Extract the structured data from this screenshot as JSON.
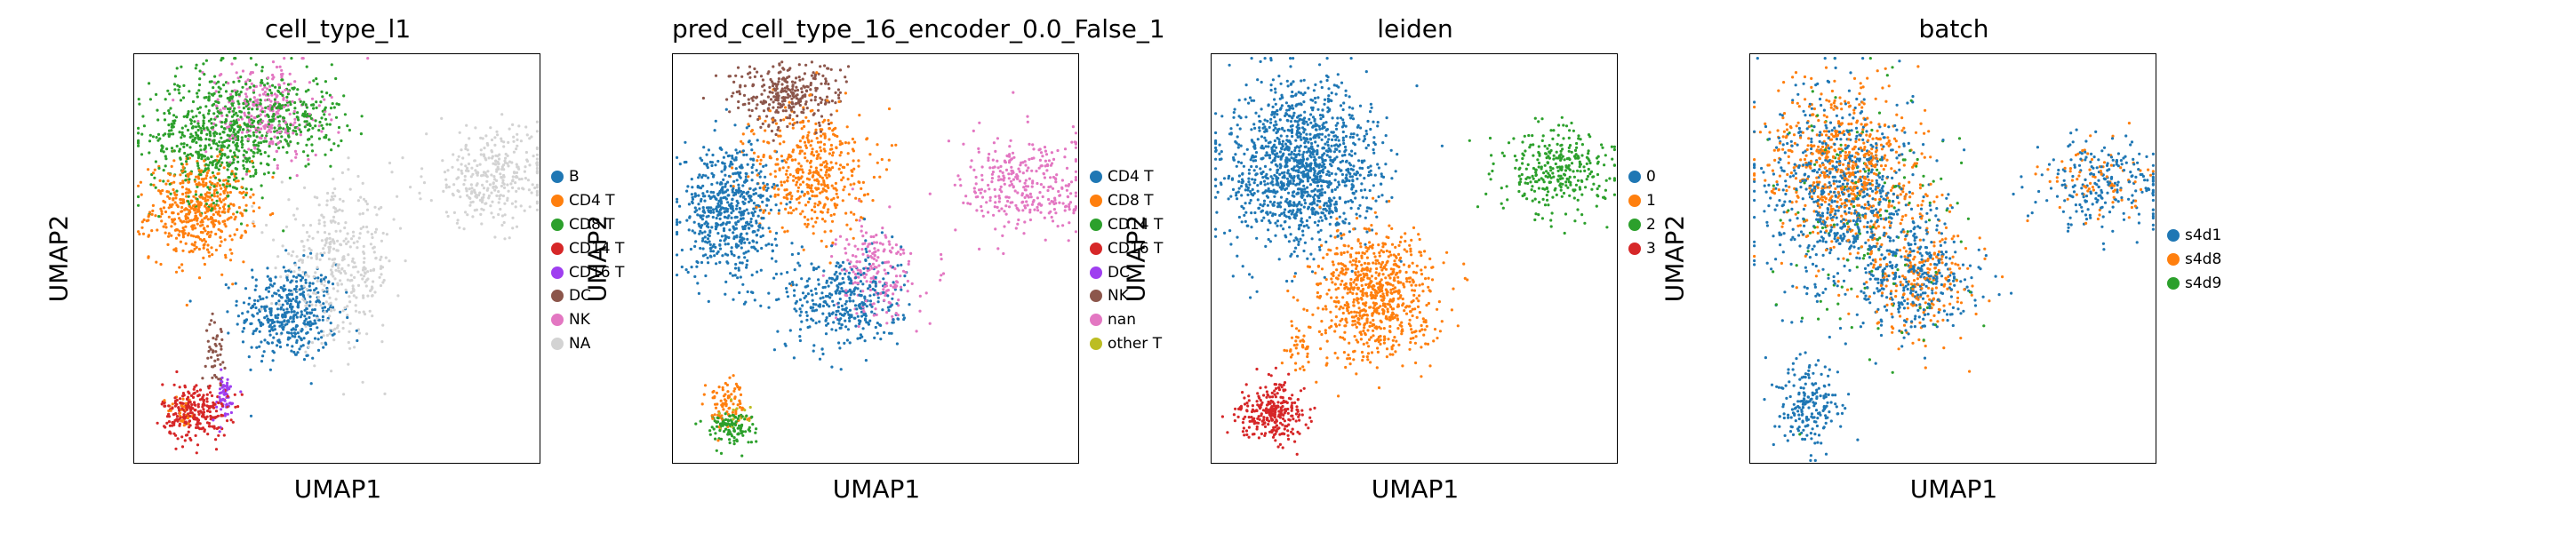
{
  "panels": [
    {
      "title": "cell_type_l1",
      "xlabel": "UMAP1",
      "ylabel": "UMAP2",
      "legend": [
        {
          "label": "B",
          "color": "#1f77b4"
        },
        {
          "label": "CD4 T",
          "color": "#ff7f0e"
        },
        {
          "label": "CD8 T",
          "color": "#2ca02c"
        },
        {
          "label": "CD14 T",
          "color": "#d62728"
        },
        {
          "label": "CD16 T",
          "color": "#9f3ff0"
        },
        {
          "label": "DC",
          "color": "#8c564b"
        },
        {
          "label": "NK",
          "color": "#e377c2"
        },
        {
          "label": "NA",
          "color": "#d3d3d3"
        }
      ]
    },
    {
      "title": "pred_cell_type_16_encoder_0.0_False_1",
      "xlabel": "UMAP1",
      "ylabel": "UMAP2",
      "legend": [
        {
          "label": "CD4 T",
          "color": "#1f77b4"
        },
        {
          "label": "CD8 T",
          "color": "#ff7f0e"
        },
        {
          "label": "CD14 T",
          "color": "#2ca02c"
        },
        {
          "label": "CD16 T",
          "color": "#d62728"
        },
        {
          "label": "DC",
          "color": "#9f3ff0"
        },
        {
          "label": "NK",
          "color": "#8c564b"
        },
        {
          "label": "nan",
          "color": "#e377c2"
        },
        {
          "label": "other T",
          "color": "#bcbd22"
        }
      ]
    },
    {
      "title": "leiden",
      "xlabel": "UMAP1",
      "ylabel": "UMAP2",
      "legend": [
        {
          "label": "0",
          "color": "#1f77b4"
        },
        {
          "label": "1",
          "color": "#ff7f0e"
        },
        {
          "label": "2",
          "color": "#2ca02c"
        },
        {
          "label": "3",
          "color": "#d62728"
        }
      ]
    },
    {
      "title": "batch",
      "xlabel": "UMAP1",
      "ylabel": "UMAP2",
      "legend": [
        {
          "label": "s4d1",
          "color": "#1f77b4"
        },
        {
          "label": "s4d8",
          "color": "#ff7f0e"
        },
        {
          "label": "s4d9",
          "color": "#2ca02c"
        }
      ]
    }
  ],
  "chart_data": [
    {
      "type": "scatter",
      "title": "cell_type_l1",
      "xlabel": "UMAP1",
      "ylabel": "UMAP2",
      "ticks": "none",
      "legend_position": "right",
      "series": [
        {
          "name": "B",
          "color": "#1f77b4",
          "clusters": [
            {
              "x": 0.38,
              "y": 0.37,
              "sx": 0.06,
              "sy": 0.06,
              "n": 420
            }
          ]
        },
        {
          "name": "CD4 T",
          "color": "#ff7f0e",
          "clusters": [
            {
              "x": 0.16,
              "y": 0.62,
              "sx": 0.06,
              "sy": 0.06,
              "n": 500
            },
            {
              "x": 0.12,
              "y": 0.13,
              "sx": 0.02,
              "sy": 0.02,
              "n": 30
            }
          ]
        },
        {
          "name": "CD8 T",
          "color": "#2ca02c",
          "clusters": [
            {
              "x": 0.2,
              "y": 0.8,
              "sx": 0.08,
              "sy": 0.08,
              "n": 600
            },
            {
              "x": 0.38,
              "y": 0.85,
              "sx": 0.07,
              "sy": 0.05,
              "n": 250
            }
          ]
        },
        {
          "name": "CD14 T",
          "color": "#d62728",
          "clusters": [
            {
              "x": 0.15,
              "y": 0.13,
              "sx": 0.04,
              "sy": 0.035,
              "n": 260
            }
          ]
        },
        {
          "name": "CD16 T",
          "color": "#9f3ff0",
          "clusters": [
            {
              "x": 0.22,
              "y": 0.16,
              "sx": 0.015,
              "sy": 0.03,
              "n": 60
            }
          ]
        },
        {
          "name": "DC",
          "color": "#8c564b",
          "clusters": [
            {
              "x": 0.2,
              "y": 0.28,
              "sx": 0.012,
              "sy": 0.04,
              "n": 45
            }
          ]
        },
        {
          "name": "NK",
          "color": "#e377c2",
          "clusters": [
            {
              "x": 0.32,
              "y": 0.86,
              "sx": 0.07,
              "sy": 0.06,
              "n": 260
            }
          ]
        },
        {
          "name": "NA",
          "color": "#d3d3d3",
          "clusters": [
            {
              "x": 0.88,
              "y": 0.7,
              "sx": 0.08,
              "sy": 0.06,
              "n": 320
            },
            {
              "x": 0.5,
              "y": 0.48,
              "sx": 0.07,
              "sy": 0.09,
              "n": 380
            }
          ]
        }
      ]
    },
    {
      "type": "scatter",
      "title": "pred_cell_type_16_encoder_0.0_False_1",
      "xlabel": "UMAP1",
      "ylabel": "UMAP2",
      "ticks": "none",
      "legend_position": "right",
      "series": [
        {
          "name": "CD4 T",
          "color": "#1f77b4",
          "clusters": [
            {
              "x": 0.14,
              "y": 0.62,
              "sx": 0.06,
              "sy": 0.08,
              "n": 600
            },
            {
              "x": 0.42,
              "y": 0.4,
              "sx": 0.07,
              "sy": 0.06,
              "n": 380
            }
          ]
        },
        {
          "name": "CD8 T",
          "color": "#ff7f0e",
          "clusters": [
            {
              "x": 0.34,
              "y": 0.72,
              "sx": 0.07,
              "sy": 0.08,
              "n": 450
            },
            {
              "x": 0.13,
              "y": 0.15,
              "sx": 0.025,
              "sy": 0.03,
              "n": 90
            }
          ]
        },
        {
          "name": "CD14 T",
          "color": "#2ca02c",
          "clusters": [
            {
              "x": 0.14,
              "y": 0.09,
              "sx": 0.03,
              "sy": 0.02,
              "n": 120
            }
          ]
        },
        {
          "name": "CD16 T",
          "color": "#d62728",
          "clusters": []
        },
        {
          "name": "DC",
          "color": "#9f3ff0",
          "clusters": []
        },
        {
          "name": "NK",
          "color": "#8c564b",
          "clusters": [
            {
              "x": 0.28,
              "y": 0.9,
              "sx": 0.07,
              "sy": 0.04,
              "n": 300
            }
          ]
        },
        {
          "name": "nan",
          "color": "#e377c2",
          "clusters": [
            {
              "x": 0.87,
              "y": 0.68,
              "sx": 0.08,
              "sy": 0.06,
              "n": 320
            },
            {
              "x": 0.5,
              "y": 0.47,
              "sx": 0.05,
              "sy": 0.06,
              "n": 200
            }
          ]
        },
        {
          "name": "other T",
          "color": "#bcbd22",
          "clusters": [
            {
              "x": 0.15,
              "y": 0.12,
              "sx": 0.02,
              "sy": 0.02,
              "n": 15
            }
          ]
        }
      ]
    },
    {
      "type": "scatter",
      "title": "leiden",
      "xlabel": "UMAP1",
      "ylabel": "UMAP2",
      "ticks": "none",
      "legend_position": "right",
      "series": [
        {
          "name": "0",
          "color": "#1f77b4",
          "clusters": [
            {
              "x": 0.22,
              "y": 0.73,
              "sx": 0.09,
              "sy": 0.1,
              "n": 1300
            }
          ]
        },
        {
          "name": "1",
          "color": "#ff7f0e",
          "clusters": [
            {
              "x": 0.4,
              "y": 0.42,
              "sx": 0.07,
              "sy": 0.08,
              "n": 750
            },
            {
              "x": 0.21,
              "y": 0.28,
              "sx": 0.015,
              "sy": 0.03,
              "n": 40
            }
          ]
        },
        {
          "name": "2",
          "color": "#2ca02c",
          "clusters": [
            {
              "x": 0.85,
              "y": 0.72,
              "sx": 0.07,
              "sy": 0.05,
              "n": 320
            }
          ]
        },
        {
          "name": "3",
          "color": "#d62728",
          "clusters": [
            {
              "x": 0.15,
              "y": 0.13,
              "sx": 0.04,
              "sy": 0.035,
              "n": 280
            }
          ]
        }
      ]
    },
    {
      "type": "scatter",
      "title": "batch",
      "xlabel": "UMAP1",
      "ylabel": "UMAP2",
      "ticks": "none",
      "legend_position": "right",
      "series": [
        {
          "name": "s4d1",
          "color": "#1f77b4",
          "clusters": [
            {
              "x": 0.22,
              "y": 0.65,
              "sx": 0.1,
              "sy": 0.13,
              "n": 700
            },
            {
              "x": 0.14,
              "y": 0.14,
              "sx": 0.04,
              "sy": 0.05,
              "n": 200
            },
            {
              "x": 0.87,
              "y": 0.68,
              "sx": 0.08,
              "sy": 0.06,
              "n": 220
            },
            {
              "x": 0.42,
              "y": 0.45,
              "sx": 0.07,
              "sy": 0.07,
              "n": 300
            }
          ]
        },
        {
          "name": "s4d8",
          "color": "#ff7f0e",
          "clusters": [
            {
              "x": 0.24,
              "y": 0.72,
              "sx": 0.09,
              "sy": 0.1,
              "n": 650
            },
            {
              "x": 0.42,
              "y": 0.45,
              "sx": 0.07,
              "sy": 0.07,
              "n": 220
            },
            {
              "x": 0.85,
              "y": 0.7,
              "sx": 0.07,
              "sy": 0.05,
              "n": 80
            }
          ]
        },
        {
          "name": "s4d9",
          "color": "#2ca02c",
          "clusters": [
            {
              "x": 0.3,
              "y": 0.6,
              "sx": 0.12,
              "sy": 0.15,
              "n": 150
            }
          ]
        }
      ]
    }
  ]
}
